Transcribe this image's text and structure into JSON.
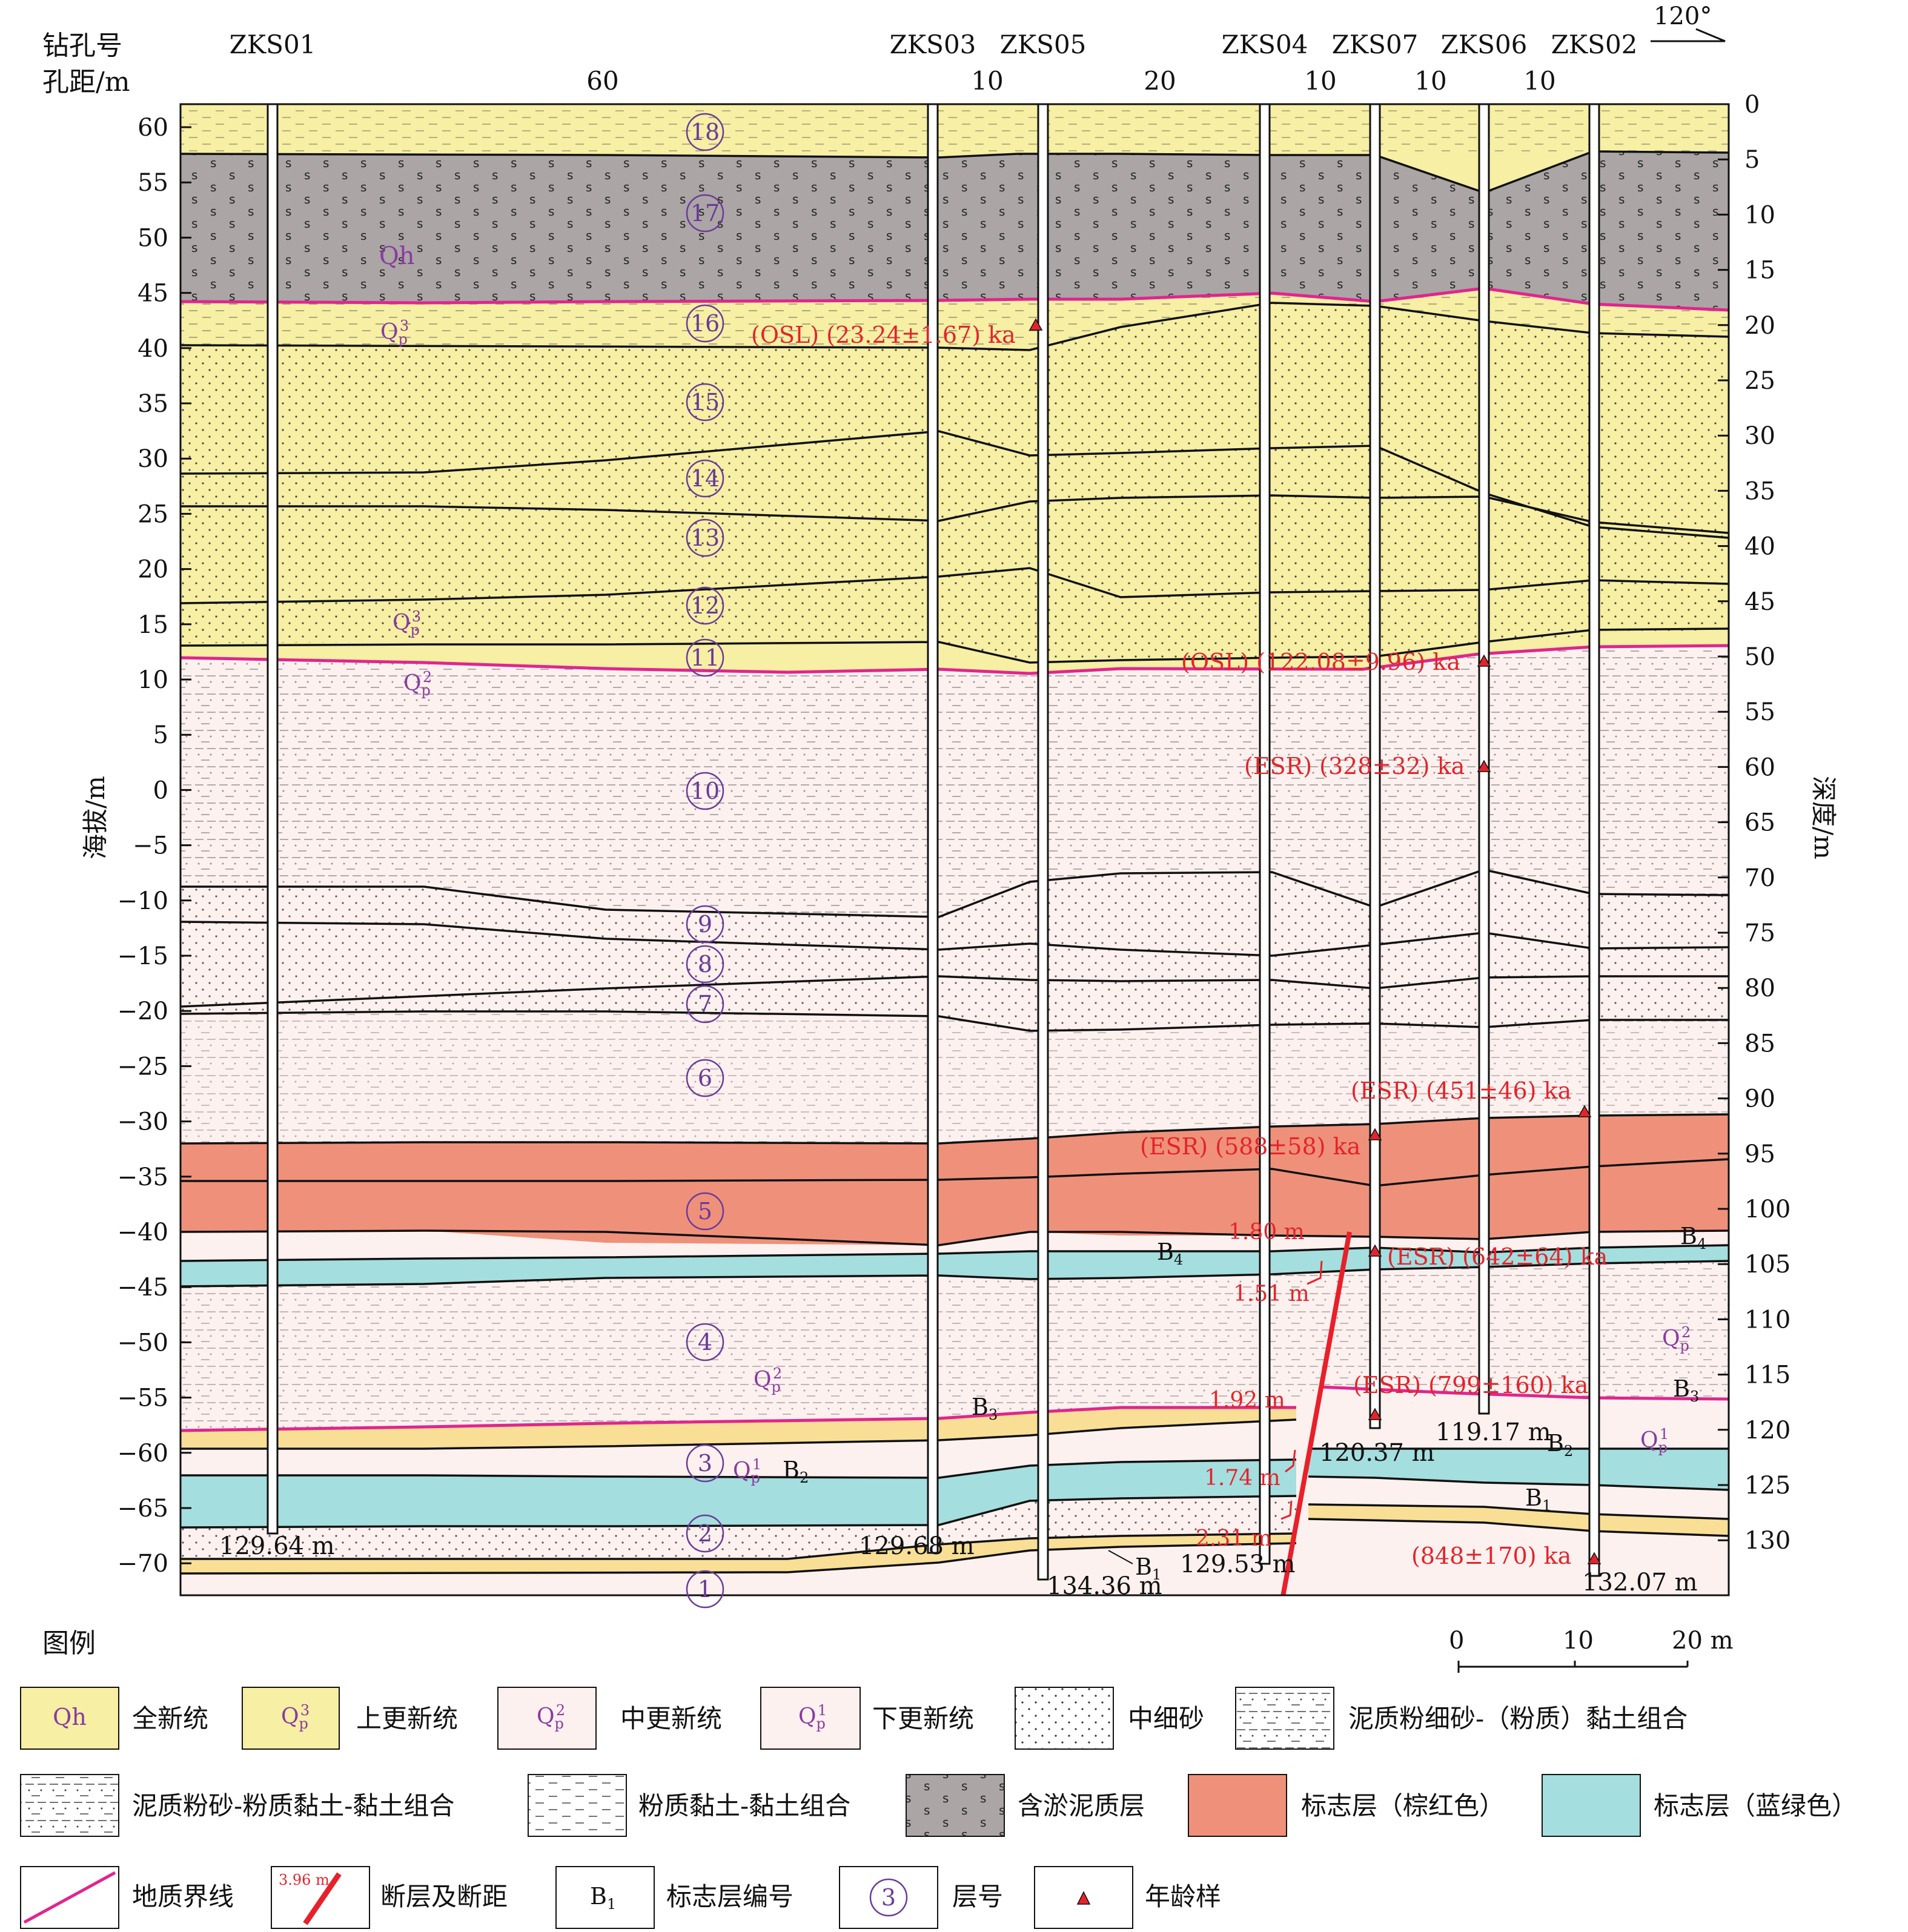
{
  "header": {
    "borehole_label": "钻孔号",
    "spacing_label": "孔距/m",
    "direction": "120°"
  },
  "boreholes": [
    {
      "name": "ZKS01",
      "bottom": "129.64 m"
    },
    {
      "name": "ZKS03",
      "bottom": "129.68 m"
    },
    {
      "name": "ZKS05",
      "bottom": "134.36 m"
    },
    {
      "name": "ZKS04",
      "bottom": "129.53 m"
    },
    {
      "name": "ZKS07",
      "bottom": "120.37 m"
    },
    {
      "name": "ZKS06",
      "bottom": "119.17 m"
    },
    {
      "name": "ZKS02",
      "bottom": "132.07 m"
    }
  ],
  "spacings": [
    "60",
    "10",
    "20",
    "10",
    "10",
    "10"
  ],
  "axes": {
    "left_title": "海拔/m",
    "right_title": "深度/m",
    "left_ticks": [
      "60",
      "55",
      "50",
      "45",
      "40",
      "35",
      "30",
      "25",
      "20",
      "15",
      "10",
      "5",
      "0",
      "−5",
      "−10",
      "−15",
      "−20",
      "−25",
      "−30",
      "−35",
      "−40",
      "−45",
      "−50",
      "−55",
      "−60",
      "−65",
      "−70"
    ],
    "right_ticks": [
      "0",
      "5",
      "10",
      "15",
      "20",
      "25",
      "30",
      "35",
      "40",
      "45",
      "50",
      "55",
      "60",
      "65",
      "70",
      "75",
      "80",
      "85",
      "90",
      "95",
      "100",
      "105",
      "110",
      "115",
      "120",
      "125",
      "130"
    ]
  },
  "layer_numbers": [
    "18",
    "17",
    "16",
    "15",
    "14",
    "13",
    "12",
    "11",
    "10",
    "9",
    "8",
    "7",
    "6",
    "5",
    "4",
    "3",
    "2",
    "1"
  ],
  "stratigraphy": {
    "qh": "Qh",
    "qp3": "Q",
    "qp2": "Q",
    "qp1": "Q",
    "sub_p": "p",
    "sup3": "3",
    "sup2": "2",
    "sup1": "1"
  },
  "marker_beds": {
    "b4": "B",
    "b3": "B",
    "b2": "B",
    "b1": "B",
    "s4": "4",
    "s3": "3",
    "s2": "2",
    "s1": "1"
  },
  "ages": [
    "(OSL) (23.24±1.67) ka",
    "(OSL) (122.08±9.96) ka",
    "(ESR) (328±32) ka",
    "(ESR) (451±46) ka",
    "(ESR) (588±58) ka",
    "(ESR) (642±64) ka",
    "(ESR) (799±160) ka",
    "(848±170) ka"
  ],
  "fault_offsets": [
    "1.80 m",
    "1.51 m",
    "1.92 m",
    "1.74 m",
    "2.31 m"
  ],
  "scale": {
    "zero": "0",
    "mid": "10",
    "end": "20 m"
  },
  "legend": {
    "title": "图例",
    "items": [
      {
        "symbol": "Qh",
        "text": "全新统"
      },
      {
        "symbol": "Q",
        "text": "上更新统"
      },
      {
        "symbol": "Q",
        "text": "中更新统"
      },
      {
        "symbol": "Q",
        "text": "下更新统"
      },
      {
        "symbol": "",
        "text": "中细砂"
      },
      {
        "symbol": "",
        "text": "泥质粉细砂-（粉质）黏土组合"
      },
      {
        "symbol": "",
        "text": "泥质粉砂-粉质黏土-黏土组合"
      },
      {
        "symbol": "",
        "text": "粉质黏土-黏土组合"
      },
      {
        "symbol": "",
        "text": "含淤泥质层"
      },
      {
        "symbol": "",
        "text": "标志层（棕红色）"
      },
      {
        "symbol": "",
        "text": "标志层（蓝绿色）"
      },
      {
        "symbol": "",
        "text": "地质界线"
      },
      {
        "symbol": "3.96 m",
        "text": "断层及断距"
      },
      {
        "symbol": "B",
        "text": "标志层编号"
      },
      {
        "symbol": "3",
        "text": "层号"
      },
      {
        "symbol": "",
        "text": "年龄样"
      }
    ],
    "b_sub": "1"
  },
  "colors": {
    "yellow": "#f6efa4",
    "tan": "#f8df95",
    "pink": "#fdf1ef",
    "gray": "#aba5a5",
    "red": "#ef917a",
    "cyan": "#a5dede",
    "magenta": "#e0258f",
    "fault": "#e8202a",
    "purple": "#6a3a9a",
    "agered": "#e3242b"
  }
}
